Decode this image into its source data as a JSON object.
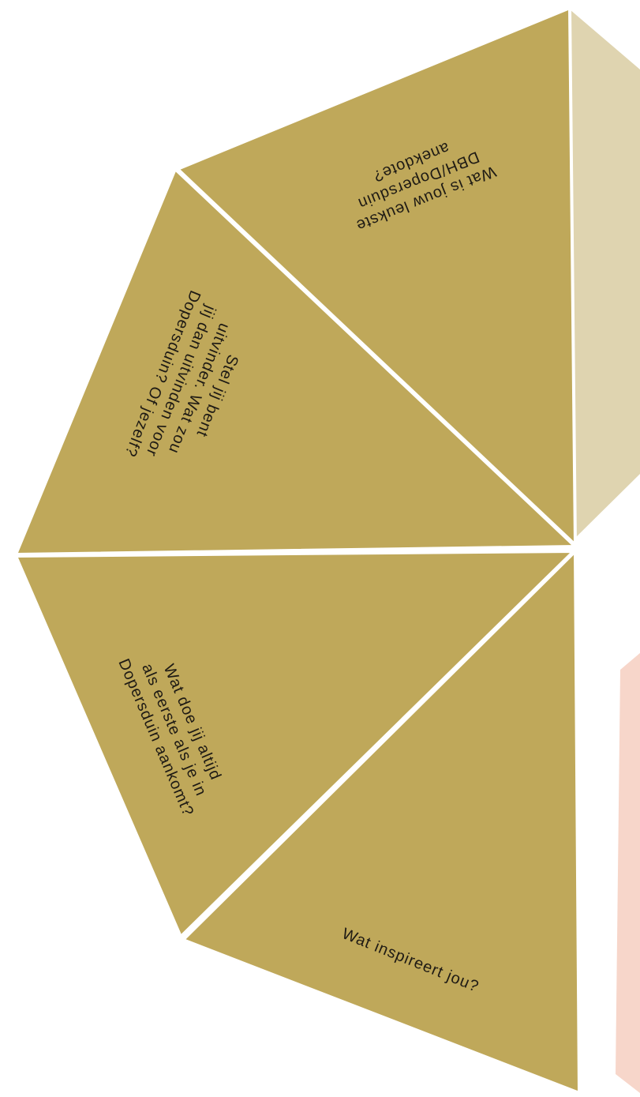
{
  "colors": {
    "panel": "#bfa85a",
    "panel_light": "#dfd4b0",
    "pink": "#f7d6ca",
    "line": "#ffffff",
    "text": "#1e1a14"
  },
  "panels": [
    {
      "id": "top",
      "lines": [
        "Wat is jouw leukste",
        "DBH/Dopersduin",
        "anekdote?"
      ]
    },
    {
      "id": "upper-left",
      "lines": [
        "Stel jij bent",
        "uitvinder. Wat zou",
        "jij dan uitvinden voor",
        "Dopersduin? Of jezelf?"
      ]
    },
    {
      "id": "lower-left",
      "lines": [
        "Wat doe jij altijd",
        "als eerste als je in",
        "Dopersduin aankomt?"
      ]
    },
    {
      "id": "bottom",
      "lines": [
        "Wat inspireert jou?"
      ]
    }
  ]
}
